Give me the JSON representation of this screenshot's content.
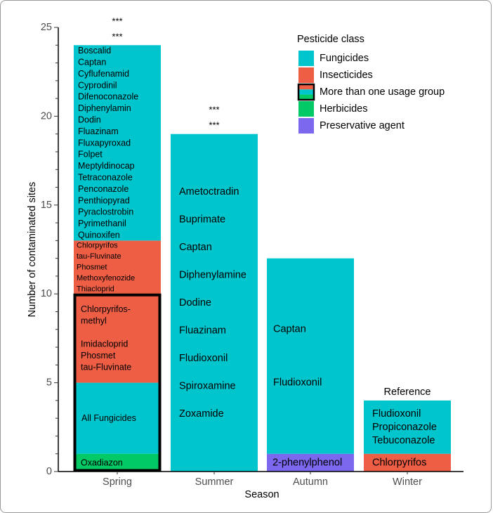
{
  "chart_data": {
    "type": "bar",
    "stacked": true,
    "xlabel": "Season",
    "ylabel": "Number of contaminated sites",
    "ylim": [
      0,
      25
    ],
    "yticks": [
      0,
      5,
      10,
      15,
      20,
      25
    ],
    "grid": false,
    "legend": {
      "title": "Pesticide class",
      "position": "top-right",
      "entries": [
        {
          "name": "Fungicides",
          "color": "#00C5CD"
        },
        {
          "name": "Insecticides",
          "color": "#EE5E45"
        },
        {
          "name": "More than one usage group",
          "color": "mixed"
        },
        {
          "name": "Herbicides",
          "color": "#00C965"
        },
        {
          "name": "Preservative agent",
          "color": "#7B68EE"
        }
      ]
    },
    "colors": {
      "Fungicides": "#00C5CD",
      "Insecticides": "#EE5E45",
      "Herbicides": "#00C965",
      "Preservative agent": "#7B68EE"
    },
    "categories": [
      "Spring",
      "Summer",
      "Autumn",
      "Winter"
    ],
    "bars": [
      {
        "season": "Spring",
        "total": 24,
        "annotations": [
          "***",
          "***"
        ],
        "group_box": {
          "label": "More than one usage group",
          "from": 0,
          "to": 10
        },
        "segments": [
          {
            "class": "Herbicides",
            "from": 0,
            "to": 1,
            "labels": [
              "Oxadiazon"
            ]
          },
          {
            "class": "Fungicides",
            "from": 1,
            "to": 5,
            "labels": [
              "All Fungicides"
            ]
          },
          {
            "class": "Insecticides",
            "from": 5,
            "to": 10,
            "labels": [
              "Chlorpyrifos-",
              "methyl",
              "",
              "Imidacloprid",
              "Phosmet",
              "tau-Fluvinate"
            ]
          },
          {
            "class": "Insecticides",
            "from": 10,
            "to": 13,
            "labels": [
              "Chlorpyrifos",
              "tau-Fluvinate",
              "Phosmet",
              "Methoxyfenozide",
              "Thiacloprid"
            ]
          },
          {
            "class": "Fungicides",
            "from": 13,
            "to": 24,
            "labels": [
              "Boscalid",
              "Captan",
              "Cyflufenamid",
              "Cyprodinil",
              "Difenoconazole",
              "Diphenylamin",
              "Dodin",
              "Fluazinam",
              "Fluxapyroxad",
              "Folpet",
              "Meptyldinocap",
              "Tetraconazole",
              "Penconazole",
              "Penthiopyrad",
              "Pyraclostrobin",
              "Pyrimethanil",
              "Quinoxifen"
            ]
          }
        ]
      },
      {
        "season": "Summer",
        "total": 19,
        "annotations": [
          "***",
          "***"
        ],
        "segments": [
          {
            "class": "Fungicides",
            "from": 0,
            "to": 19,
            "labels": [
              "Ametoctradin",
              "Buprimate",
              "Captan",
              "Diphenylamine",
              "Dodine",
              "Fluazinam",
              "Fludioxonil",
              "Spiroxamine",
              "Zoxamide"
            ]
          }
        ]
      },
      {
        "season": "Autumn",
        "total": 12,
        "annotations": [],
        "segments": [
          {
            "class": "Preservative agent",
            "from": 0,
            "to": 1,
            "labels": [
              "2-phenylphenol"
            ]
          },
          {
            "class": "Fungicides",
            "from": 1,
            "to": 12,
            "labels": [
              "Captan",
              "",
              "Fludioxonil"
            ]
          }
        ]
      },
      {
        "season": "Winter",
        "total": 4,
        "annotations": [
          "Reference"
        ],
        "segments": [
          {
            "class": "Insecticides",
            "from": 0,
            "to": 1,
            "labels": [
              "Chlorpyrifos"
            ]
          },
          {
            "class": "Fungicides",
            "from": 1,
            "to": 4,
            "labels": [
              "Fludioxonil",
              "Propiconazole",
              "Tebuconazole"
            ]
          }
        ]
      }
    ]
  }
}
